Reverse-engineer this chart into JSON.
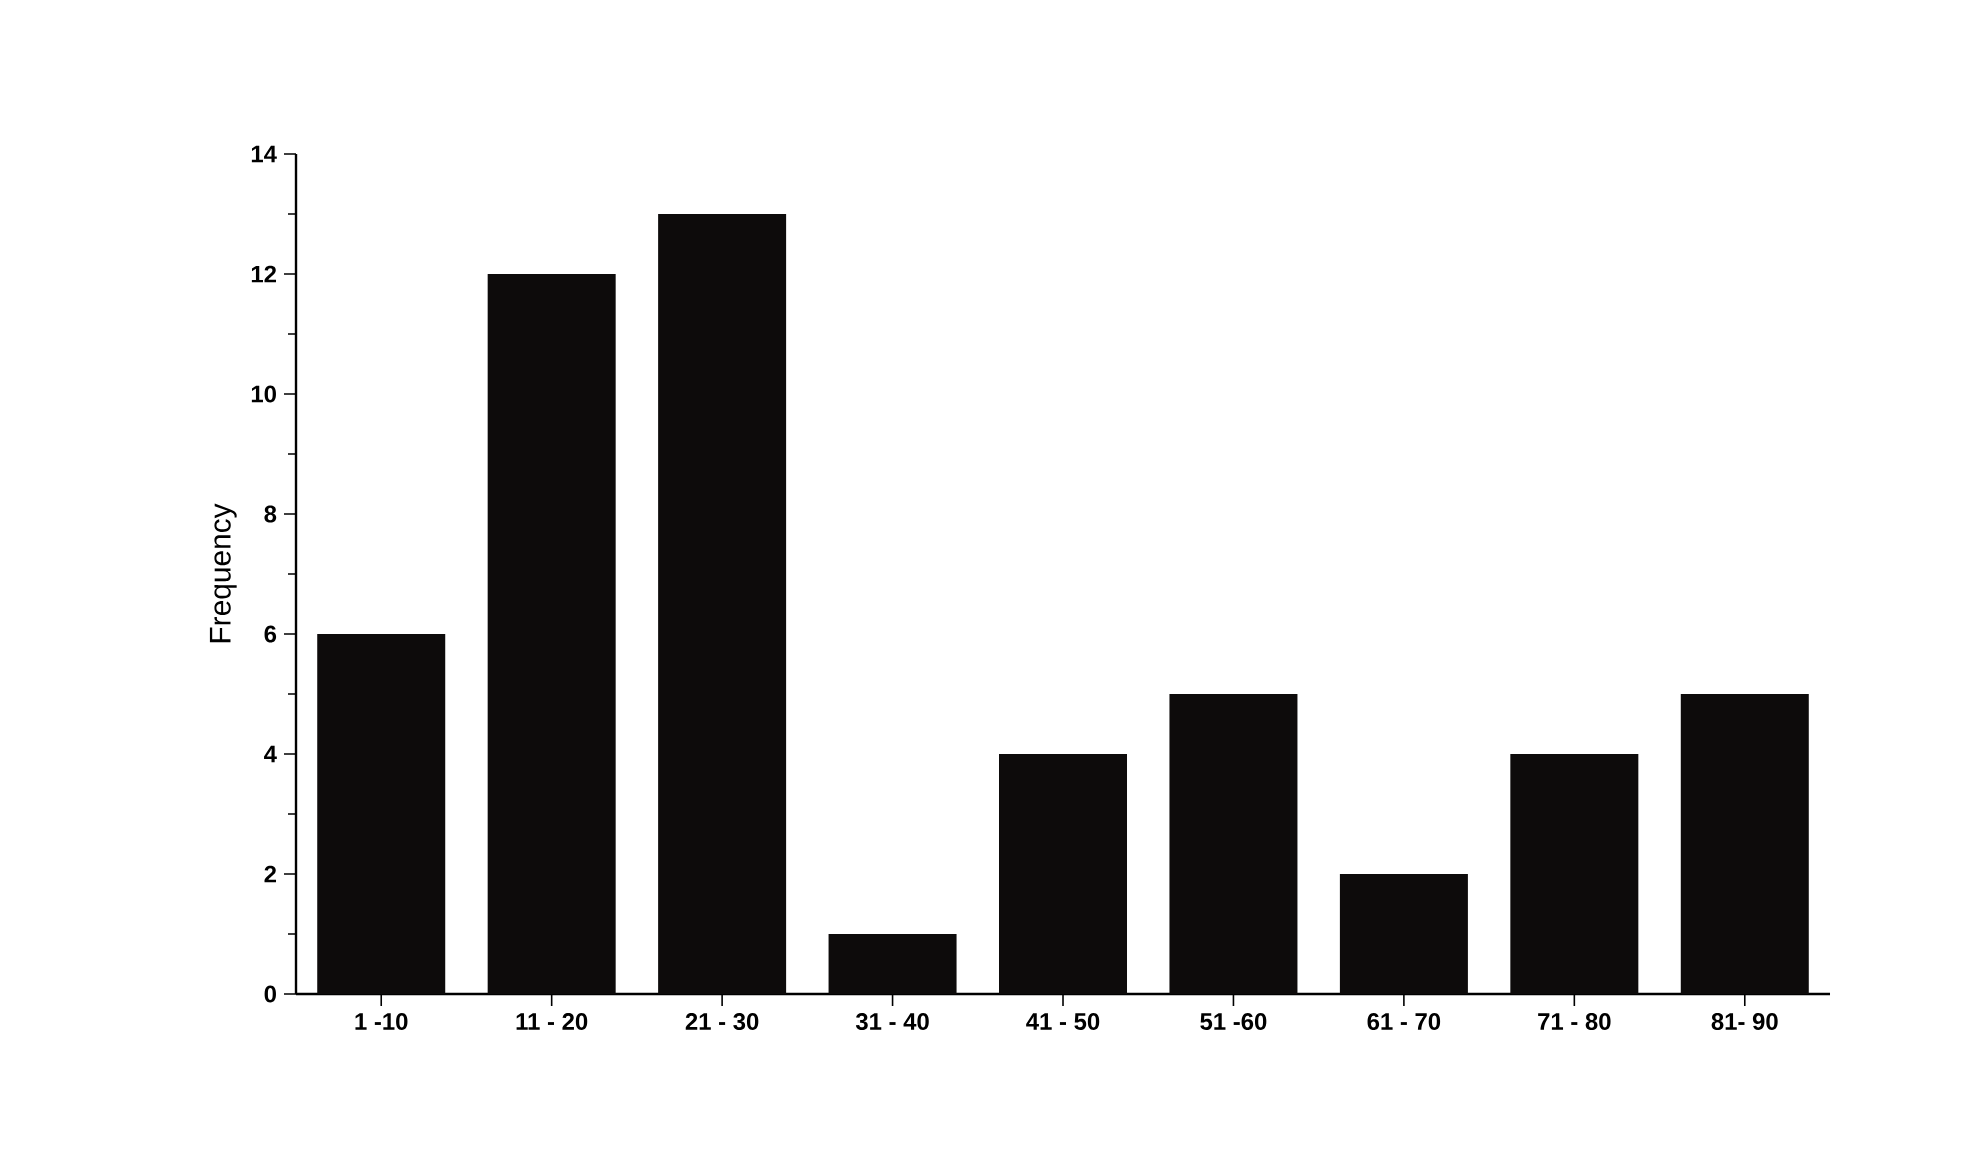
{
  "chart_data": {
    "type": "bar",
    "ylabel": "Frequency",
    "categories": [
      "1 -10",
      "11 - 20",
      "21 - 30",
      "31 - 40",
      "41 - 50",
      "51 -60",
      "61 - 70",
      "71 - 80",
      "81- 90"
    ],
    "values": [
      6,
      12,
      13,
      1,
      4,
      5,
      2,
      4,
      5
    ],
    "color": "#0d0b0b",
    "ylim": [
      0,
      14
    ],
    "yticks": [
      0,
      2,
      4,
      6,
      8,
      10,
      12,
      14
    ],
    "grid": false
  }
}
